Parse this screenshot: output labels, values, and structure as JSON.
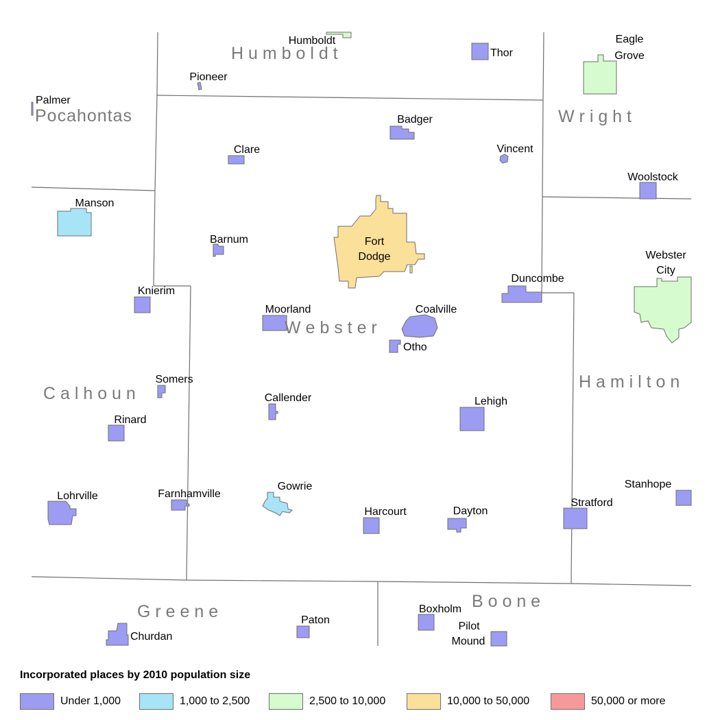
{
  "legend": {
    "title": "Incorporated places by 2010 population size",
    "items": [
      {
        "label": "Under 1,000",
        "color": "#9d9cf3"
      },
      {
        "label": "1,000 to 2,500",
        "color": "#a8e4f7"
      },
      {
        "label": "2,500 to 10,000",
        "color": "#d5fbce"
      },
      {
        "label": "10,000 to 50,000",
        "color": "#fbe09a"
      },
      {
        "label": "50,000 or more",
        "color": "#f7999a"
      }
    ]
  },
  "counties": [
    {
      "name": "Humboldt",
      "text": "H u m b o l d t"
    },
    {
      "name": "Pocahontas",
      "text": "Pocahontas"
    },
    {
      "name": "Wright",
      "text": "W r i g h t"
    },
    {
      "name": "Webster",
      "text": "W e b s t e r"
    },
    {
      "name": "Calhoun",
      "text": "C a l h o u n"
    },
    {
      "name": "Hamilton",
      "text": "H a m i l t o n"
    },
    {
      "name": "Greene",
      "text": "G r e e n e"
    },
    {
      "name": "Boone",
      "text": "B o o n e"
    }
  ],
  "places": [
    {
      "name": "Humboldt",
      "category": "2,500 to 10,000"
    },
    {
      "name": "Thor",
      "category": "Under 1,000"
    },
    {
      "name": "Eagle Grove",
      "lines": [
        "Eagle",
        "Grove"
      ],
      "category": "2,500 to 10,000"
    },
    {
      "name": "Pioneer",
      "category": "Under 1,000"
    },
    {
      "name": "Palmer",
      "category": "Under 1,000"
    },
    {
      "name": "Badger",
      "category": "Under 1,000"
    },
    {
      "name": "Clare",
      "category": "Under 1,000"
    },
    {
      "name": "Vincent",
      "category": "Under 1,000"
    },
    {
      "name": "Woolstock",
      "category": "Under 1,000"
    },
    {
      "name": "Manson",
      "category": "1,000 to 2,500"
    },
    {
      "name": "Barnum",
      "category": "Under 1,000"
    },
    {
      "name": "Fort Dodge",
      "lines": [
        "Fort",
        "Dodge"
      ],
      "category": "10,000 to 50,000"
    },
    {
      "name": "Webster City",
      "lines": [
        "Webster",
        "City"
      ],
      "category": "2,500 to 10,000"
    },
    {
      "name": "Duncombe",
      "category": "Under 1,000"
    },
    {
      "name": "Knierim",
      "category": "Under 1,000"
    },
    {
      "name": "Moorland",
      "category": "Under 1,000"
    },
    {
      "name": "Coalville",
      "category": "Under 1,000"
    },
    {
      "name": "Otho",
      "category": "Under 1,000"
    },
    {
      "name": "Somers",
      "category": "Under 1,000"
    },
    {
      "name": "Callender",
      "category": "Under 1,000"
    },
    {
      "name": "Lehigh",
      "category": "Under 1,000"
    },
    {
      "name": "Rinard",
      "category": "Under 1,000"
    },
    {
      "name": "Lohrville",
      "category": "Under 1,000"
    },
    {
      "name": "Farnhamville",
      "category": "Under 1,000"
    },
    {
      "name": "Gowrie",
      "category": "1,000 to 2,500"
    },
    {
      "name": "Harcourt",
      "category": "Under 1,000"
    },
    {
      "name": "Dayton",
      "category": "Under 1,000"
    },
    {
      "name": "Stratford",
      "category": "Under 1,000"
    },
    {
      "name": "Stanhope",
      "category": "Under 1,000"
    },
    {
      "name": "Boxholm",
      "category": "Under 1,000"
    },
    {
      "name": "Pilot Mound",
      "lines": [
        "Pilot",
        "Mound"
      ],
      "category": "Under 1,000"
    },
    {
      "name": "Paton",
      "category": "Under 1,000"
    },
    {
      "name": "Churdan",
      "category": "Under 1,000"
    }
  ]
}
